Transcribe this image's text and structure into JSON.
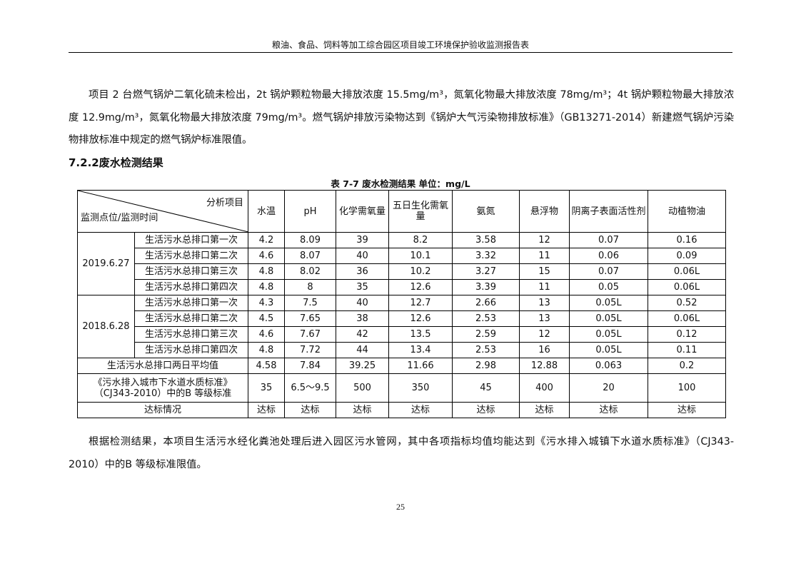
{
  "header": {
    "title": "粮油、食品、饲料等加工综合园区项目竣工环境保护验收监测报告表"
  },
  "paragraph1": "项目 2 台燃气锅炉二氧化硫未检出，2t 锅炉颗粒物最大排放浓度 15.5mg/m³，氮氧化物最大排放浓度 78mg/m³；4t 锅炉颗粒物最大排放浓度 12.9mg/m³，氮氧化物最大排放浓度 79mg/m³。燃气锅炉排放污染物达到《锅炉大气污染物排放标准》（GB13271-2014）新建燃气锅炉污染物排放标准中规定的燃气锅炉标准限值。",
  "section_title": "7.2.2废水检测结果",
  "table": {
    "caption": "表 7-7  废水检测结果   单位：mg/L",
    "corner_top": "分析项目",
    "corner_bottom": "监测点位/监测时间",
    "columns": [
      "水温",
      "pH",
      "化学需氧量",
      "五日生化需氧量",
      "氨氮",
      "悬浮物",
      "阴离子表面活性剂",
      "动植物油"
    ],
    "groups": [
      {
        "date": "2019.6.27",
        "rows": [
          {
            "point": "生活污水总排口第一次",
            "values": [
              "4.2",
              "8.09",
              "39",
              "8.2",
              "3.58",
              "12",
              "0.07",
              "0.16"
            ]
          },
          {
            "point": "生活污水总排口第二次",
            "values": [
              "4.6",
              "8.07",
              "40",
              "10.1",
              "3.32",
              "11",
              "0.06",
              "0.09"
            ]
          },
          {
            "point": "生活污水总排口第三次",
            "values": [
              "4.8",
              "8.02",
              "36",
              "10.2",
              "3.27",
              "15",
              "0.07",
              "0.06L"
            ]
          },
          {
            "point": "生活污水总排口第四次",
            "values": [
              "4.8",
              "8",
              "35",
              "12.6",
              "3.39",
              "11",
              "0.05",
              "0.06L"
            ]
          }
        ]
      },
      {
        "date": "2018.6.28",
        "rows": [
          {
            "point": "生活污水总排口第一次",
            "values": [
              "4.3",
              "7.5",
              "40",
              "12.7",
              "2.66",
              "13",
              "0.05L",
              "0.52"
            ]
          },
          {
            "point": "生活污水总排口第二次",
            "values": [
              "4.5",
              "7.65",
              "38",
              "12.6",
              "2.53",
              "13",
              "0.05L",
              "0.06L"
            ]
          },
          {
            "point": "生活污水总排口第三次",
            "values": [
              "4.6",
              "7.67",
              "42",
              "13.5",
              "2.59",
              "12",
              "0.05L",
              "0.12"
            ]
          },
          {
            "point": "生活污水总排口第四次",
            "values": [
              "4.8",
              "7.72",
              "44",
              "13.4",
              "2.53",
              "16",
              "0.05L",
              "0.11"
            ]
          }
        ]
      }
    ],
    "average": {
      "label": "生活污水总排口两日平均值",
      "values": [
        "4.58",
        "7.84",
        "39.25",
        "11.66",
        "2.98",
        "12.88",
        "0.063",
        "0.2"
      ]
    },
    "standard": {
      "label_line1": "《污水排入城市下水道水质标准》",
      "label_line2": "（CJ343-2010）中的B 等级标准",
      "values": [
        "35",
        "6.5～9.5",
        "500",
        "350",
        "45",
        "400",
        "20",
        "100"
      ]
    },
    "compliance": {
      "label": "达标情况",
      "values": [
        "达标",
        "达标",
        "达标",
        "达标",
        "达标",
        "达标",
        "达标",
        "达标"
      ]
    }
  },
  "paragraph2": "根据检测结果，本项目生活污水经化粪池处理后进入园区污水管网，其中各项指标均值均能达到《污水排入城镇下水道水质标准》（CJ343-2010）中的B 等级标准限值。",
  "page_number": "25"
}
